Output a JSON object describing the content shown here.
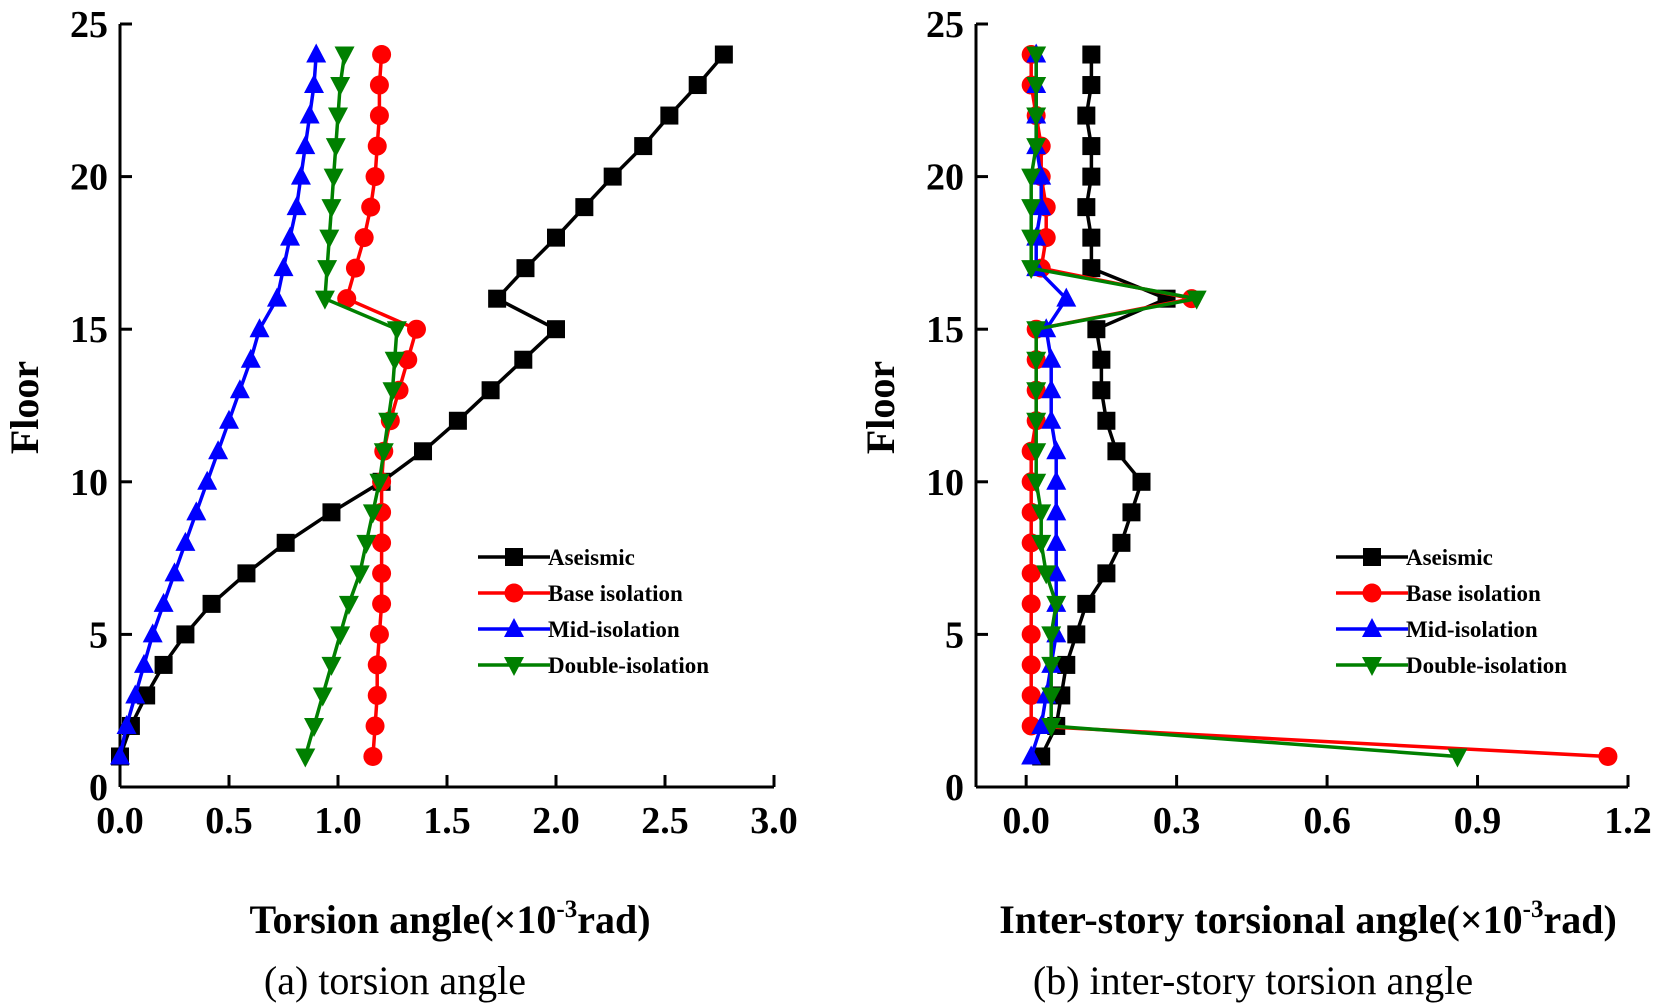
{
  "chart_data": [
    {
      "type": "line",
      "caption": "(a) torsion angle",
      "xlabel_main": "Torsion angle(×10",
      "xlabel_sup": "-3",
      "xlabel_end": "rad)",
      "ylabel": "Floor",
      "xlim": [
        0,
        3.0
      ],
      "ylim": [
        0,
        25
      ],
      "xticks": [
        "0.0",
        "0.5",
        "1.0",
        "1.5",
        "2.0",
        "2.5",
        "3.0"
      ],
      "yticks": [
        "0",
        "5",
        "10",
        "15",
        "20",
        "25"
      ],
      "floors": [
        1,
        2,
        3,
        4,
        5,
        6,
        7,
        8,
        9,
        10,
        11,
        12,
        13,
        14,
        15,
        16,
        17,
        18,
        19,
        20,
        21,
        22,
        23,
        24
      ],
      "series": [
        {
          "name": "Aseismic",
          "color": "#000000",
          "marker": "square",
          "values": [
            0.0,
            0.05,
            0.12,
            0.2,
            0.3,
            0.42,
            0.58,
            0.76,
            0.97,
            1.2,
            1.39,
            1.55,
            1.7,
            1.85,
            2.0,
            1.73,
            1.86,
            2.0,
            2.13,
            2.26,
            2.4,
            2.52,
            2.65,
            2.77
          ]
        },
        {
          "name": "Base isolation",
          "color": "#ff0000",
          "marker": "circle",
          "values": [
            1.16,
            1.17,
            1.18,
            1.18,
            1.19,
            1.2,
            1.2,
            1.2,
            1.2,
            1.2,
            1.21,
            1.24,
            1.28,
            1.32,
            1.36,
            1.04,
            1.08,
            1.12,
            1.15,
            1.17,
            1.18,
            1.19,
            1.19,
            1.2
          ]
        },
        {
          "name": "Mid-isolation",
          "color": "#0000ff",
          "marker": "triangle-up",
          "values": [
            0.0,
            0.03,
            0.07,
            0.11,
            0.15,
            0.2,
            0.25,
            0.3,
            0.35,
            0.4,
            0.45,
            0.5,
            0.55,
            0.6,
            0.64,
            0.72,
            0.75,
            0.78,
            0.81,
            0.83,
            0.85,
            0.87,
            0.89,
            0.9
          ]
        },
        {
          "name": "Double-isolation",
          "color": "#008000",
          "marker": "triangle-down",
          "values": [
            0.85,
            0.89,
            0.93,
            0.97,
            1.01,
            1.05,
            1.1,
            1.13,
            1.16,
            1.19,
            1.21,
            1.23,
            1.25,
            1.26,
            1.27,
            0.94,
            0.95,
            0.96,
            0.97,
            0.98,
            0.99,
            1.0,
            1.01,
            1.03
          ]
        }
      ]
    },
    {
      "type": "line",
      "caption": "(b) inter-story torsion angle",
      "xlabel_main": "Inter-story torsional angle(×10",
      "xlabel_sup": "-3",
      "xlabel_end": "rad)",
      "ylabel": "Floor",
      "xlim": [
        -0.1,
        1.2
      ],
      "ylim": [
        0,
        25
      ],
      "xticks": [
        "0.0",
        "0.3",
        "0.6",
        "0.9",
        "1.2"
      ],
      "yticks": [
        "0",
        "5",
        "10",
        "15",
        "20",
        "25"
      ],
      "floors": [
        1,
        2,
        3,
        4,
        5,
        6,
        7,
        8,
        9,
        10,
        11,
        12,
        13,
        14,
        15,
        16,
        17,
        18,
        19,
        20,
        21,
        22,
        23,
        24
      ],
      "series": [
        {
          "name": "Aseismic",
          "color": "#000000",
          "marker": "square",
          "values": [
            0.03,
            0.06,
            0.07,
            0.08,
            0.1,
            0.12,
            0.16,
            0.19,
            0.21,
            0.23,
            0.18,
            0.16,
            0.15,
            0.15,
            0.14,
            0.28,
            0.13,
            0.13,
            0.12,
            0.13,
            0.13,
            0.12,
            0.13,
            0.13
          ]
        },
        {
          "name": "Base isolation",
          "color": "#ff0000",
          "marker": "circle",
          "values": [
            1.16,
            0.01,
            0.01,
            0.01,
            0.01,
            0.01,
            0.01,
            0.01,
            0.01,
            0.01,
            0.01,
            0.02,
            0.02,
            0.02,
            0.02,
            0.33,
            0.03,
            0.04,
            0.04,
            0.03,
            0.03,
            0.02,
            0.01,
            0.01
          ]
        },
        {
          "name": "Mid-isolation",
          "color": "#0000ff",
          "marker": "triangle-up",
          "values": [
            0.01,
            0.03,
            0.04,
            0.05,
            0.06,
            0.06,
            0.06,
            0.06,
            0.06,
            0.06,
            0.06,
            0.05,
            0.05,
            0.05,
            0.04,
            0.08,
            0.02,
            0.02,
            0.03,
            0.03,
            0.02,
            0.02,
            0.02,
            0.02
          ]
        },
        {
          "name": "Double-isolation",
          "color": "#008000",
          "marker": "triangle-down",
          "values": [
            0.86,
            0.05,
            0.05,
            0.05,
            0.05,
            0.06,
            0.04,
            0.03,
            0.03,
            0.02,
            0.02,
            0.02,
            0.02,
            0.02,
            0.02,
            0.34,
            0.01,
            0.01,
            0.01,
            0.01,
            0.02,
            0.02,
            0.02,
            0.02
          ]
        }
      ]
    }
  ]
}
